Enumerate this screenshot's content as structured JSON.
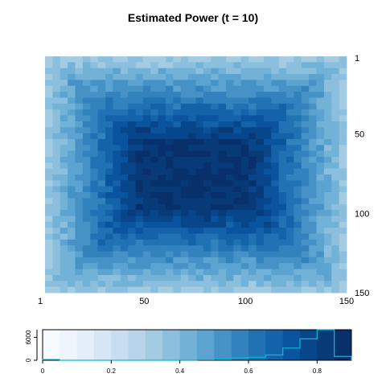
{
  "chart_data": [
    {
      "type": "heatmap",
      "title": "Estimated Power (t = 10)",
      "x_ticks": [
        "1",
        "50",
        "100",
        "150"
      ],
      "x_tick_values": [
        1,
        50,
        100,
        150
      ],
      "y_ticks": [
        "1",
        "50",
        "100",
        "150"
      ],
      "y_tick_values": [
        1,
        50,
        100,
        150
      ],
      "xlim": [
        1,
        150
      ],
      "ylim": [
        1,
        150
      ],
      "y_axis": "right",
      "y_reversed": true,
      "grid": false,
      "value_range": [
        0,
        0.9
      ]
    },
    {
      "type": "bar",
      "subtype": "color-key-histogram",
      "x_ticks": [
        "0",
        "0.2",
        "0.4",
        "0.6",
        "0.8"
      ],
      "x_tick_values": [
        0,
        0.2,
        0.4,
        0.6,
        0.8
      ],
      "y_ticks": [
        "0",
        "6000"
      ],
      "y_tick_values": [
        0,
        6000
      ],
      "xlim": [
        0,
        0.9
      ],
      "ylim": [
        0,
        8000
      ],
      "bins": [
        0,
        0.05,
        0.1,
        0.15,
        0.2,
        0.25,
        0.3,
        0.35,
        0.4,
        0.45,
        0.5,
        0.55,
        0.6,
        0.65,
        0.7,
        0.75,
        0.8,
        0.85,
        0.9
      ],
      "counts": [
        200,
        0,
        0,
        0,
        0,
        0,
        0,
        0,
        50,
        150,
        300,
        600,
        800,
        1400,
        3200,
        5600,
        8000,
        1000
      ],
      "line_color": "#00bcd4",
      "palette": [
        "#f7fbff",
        "#edf4fc",
        "#e3eef9",
        "#d6e6f4",
        "#c8ddf0",
        "#b7d4ea",
        "#a3cce3",
        "#8bbfdd",
        "#72b2d7",
        "#5ba3d0",
        "#4692c6",
        "#3282be",
        "#2171b5",
        "#1462a9",
        "#0a539e",
        "#08468b",
        "#083a78",
        "#08306b"
      ]
    }
  ]
}
